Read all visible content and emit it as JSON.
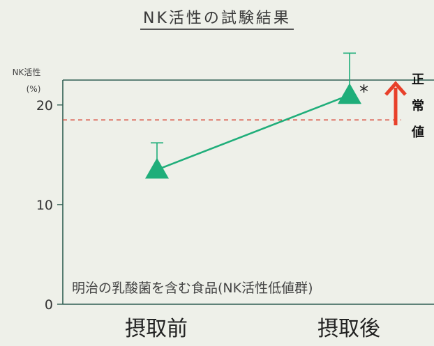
{
  "chart_data": {
    "type": "line",
    "title": "NK活性の試験結果",
    "ylabel_line1": "NK活性",
    "ylabel_line2": "(%)",
    "ylim": [
      0,
      22.5
    ],
    "yticks": [
      0,
      10,
      20
    ],
    "categories": [
      "摂取前",
      "摂取後"
    ],
    "series": [
      {
        "values": [
          13.5,
          21.0
        ],
        "error_upper": [
          16.2,
          25.2
        ],
        "color": "#1fae7a"
      }
    ],
    "normal_threshold": 18.5,
    "normal_line_color": "#d94a3a",
    "significance_marker": "*",
    "annotation": "明治の乳酸菌を含む食品(NK活性低値群)",
    "normal_label_chars": [
      "正",
      "常",
      "値"
    ],
    "arrow_color": "#e8402a"
  }
}
